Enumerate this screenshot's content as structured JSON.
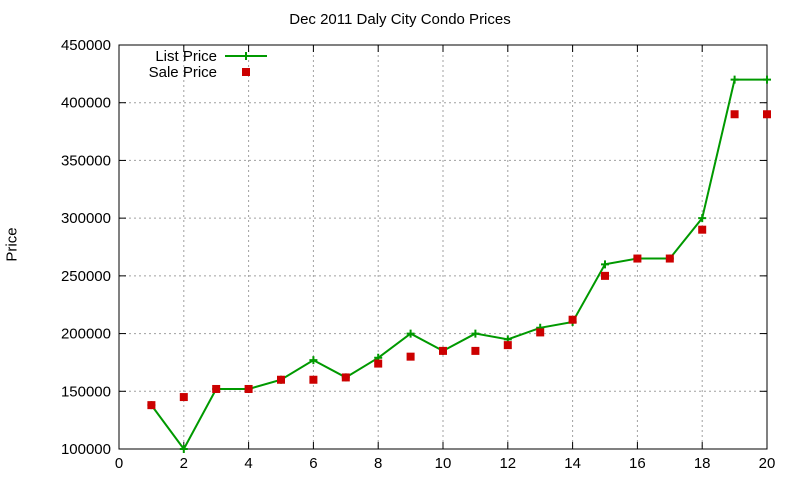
{
  "chart_data": {
    "type": "line",
    "title": "Dec 2011 Daly City Condo Prices",
    "xlabel": "",
    "ylabel": "Price",
    "xlim": [
      0,
      20
    ],
    "ylim": [
      100000,
      450000
    ],
    "xticks": [
      0,
      2,
      4,
      6,
      8,
      10,
      12,
      14,
      16,
      18,
      20
    ],
    "yticks": [
      100000,
      150000,
      200000,
      250000,
      300000,
      350000,
      400000,
      450000
    ],
    "grid": true,
    "legend_position": "top-left",
    "series": [
      {
        "name": "List Price",
        "style": "line-plus",
        "color": "#009900",
        "x": [
          1,
          2,
          3,
          4,
          5,
          6,
          7,
          8,
          9,
          10,
          11,
          12,
          13,
          14,
          15,
          16,
          17,
          18,
          19,
          20
        ],
        "y": [
          138000,
          100000,
          152000,
          152000,
          160000,
          177000,
          162000,
          179000,
          200000,
          185000,
          200000,
          195000,
          205000,
          210000,
          260000,
          265000,
          265000,
          300000,
          420000,
          420000
        ]
      },
      {
        "name": "Sale Price",
        "style": "square-points",
        "color": "#cc0000",
        "x": [
          1,
          2,
          3,
          4,
          5,
          6,
          7,
          8,
          9,
          10,
          11,
          12,
          13,
          14,
          15,
          16,
          17,
          18,
          19,
          20
        ],
        "y": [
          138000,
          145000,
          152000,
          152000,
          160000,
          160000,
          162000,
          174000,
          180000,
          185000,
          185000,
          190000,
          201000,
          212000,
          250000,
          265000,
          265000,
          290000,
          390000,
          390000
        ]
      }
    ]
  }
}
